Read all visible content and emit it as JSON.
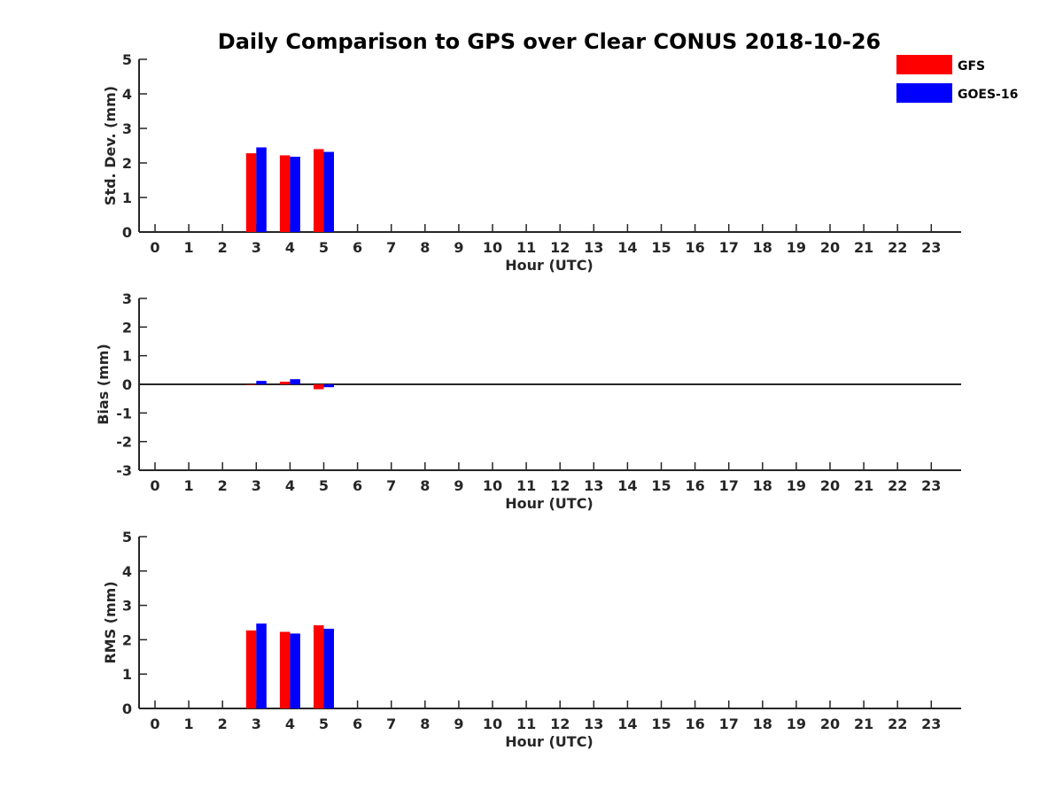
{
  "chart_data": {
    "type": "bar",
    "title": "Daily Comparison to GPS over Clear CONUS 2018-10-26",
    "legend": {
      "placement": "top-right",
      "entries": [
        {
          "name": "GFS",
          "color": "#ff0000"
        },
        {
          "name": "GOES-16",
          "color": "#0000ff"
        }
      ]
    },
    "panels": [
      {
        "ylabel": "Std. Dev. (mm)",
        "xlabel": "Hour (UTC)",
        "ylim": [
          0,
          5
        ],
        "yticks": [
          "0",
          "1",
          "2",
          "3",
          "4",
          "5"
        ],
        "zero_line": false,
        "categories": [
          "0",
          "1",
          "2",
          "3",
          "4",
          "5",
          "6",
          "7",
          "8",
          "9",
          "10",
          "11",
          "12",
          "13",
          "14",
          "15",
          "16",
          "17",
          "18",
          "19",
          "20",
          "21",
          "22",
          "23"
        ],
        "series": [
          {
            "name": "GFS",
            "color": "#ff0000",
            "values": [
              null,
              null,
              null,
              2.28,
              2.22,
              2.4,
              null,
              null,
              null,
              null,
              null,
              null,
              null,
              null,
              null,
              null,
              null,
              null,
              null,
              null,
              null,
              null,
              null,
              null
            ]
          },
          {
            "name": "GOES-16",
            "color": "#0000ff",
            "values": [
              null,
              null,
              null,
              2.45,
              2.18,
              2.32,
              null,
              null,
              null,
              null,
              null,
              null,
              null,
              null,
              null,
              null,
              null,
              null,
              null,
              null,
              null,
              null,
              null,
              null
            ]
          }
        ]
      },
      {
        "ylabel": "Bias (mm)",
        "xlabel": "Hour (UTC)",
        "ylim": [
          -3,
          3
        ],
        "yticks": [
          "-3",
          "-2",
          "-1",
          "0",
          "1",
          "2",
          "3"
        ],
        "zero_line": true,
        "categories": [
          "0",
          "1",
          "2",
          "3",
          "4",
          "5",
          "6",
          "7",
          "8",
          "9",
          "10",
          "11",
          "12",
          "13",
          "14",
          "15",
          "16",
          "17",
          "18",
          "19",
          "20",
          "21",
          "22",
          "23"
        ],
        "series": [
          {
            "name": "GFS",
            "color": "#ff0000",
            "values": [
              null,
              null,
              null,
              0.0,
              0.09,
              -0.17,
              null,
              null,
              null,
              null,
              null,
              null,
              null,
              null,
              null,
              null,
              null,
              null,
              null,
              null,
              null,
              null,
              null,
              null
            ]
          },
          {
            "name": "GOES-16",
            "color": "#0000ff",
            "values": [
              null,
              null,
              null,
              0.12,
              0.18,
              -0.1,
              null,
              null,
              null,
              null,
              null,
              null,
              null,
              null,
              null,
              null,
              null,
              null,
              null,
              null,
              null,
              null,
              null,
              null
            ]
          }
        ]
      },
      {
        "ylabel": "RMS (mm)",
        "xlabel": "Hour (UTC)",
        "ylim": [
          0,
          5
        ],
        "yticks": [
          "0",
          "1",
          "2",
          "3",
          "4",
          "5"
        ],
        "zero_line": false,
        "categories": [
          "0",
          "1",
          "2",
          "3",
          "4",
          "5",
          "6",
          "7",
          "8",
          "9",
          "10",
          "11",
          "12",
          "13",
          "14",
          "15",
          "16",
          "17",
          "18",
          "19",
          "20",
          "21",
          "22",
          "23"
        ],
        "series": [
          {
            "name": "GFS",
            "color": "#ff0000",
            "values": [
              null,
              null,
              null,
              2.27,
              2.23,
              2.42,
              null,
              null,
              null,
              null,
              null,
              null,
              null,
              null,
              null,
              null,
              null,
              null,
              null,
              null,
              null,
              null,
              null,
              null
            ]
          },
          {
            "name": "GOES-16",
            "color": "#0000ff",
            "values": [
              null,
              null,
              null,
              2.47,
              2.18,
              2.32,
              null,
              null,
              null,
              null,
              null,
              null,
              null,
              null,
              null,
              null,
              null,
              null,
              null,
              null,
              null,
              null,
              null,
              null
            ]
          }
        ]
      }
    ]
  }
}
